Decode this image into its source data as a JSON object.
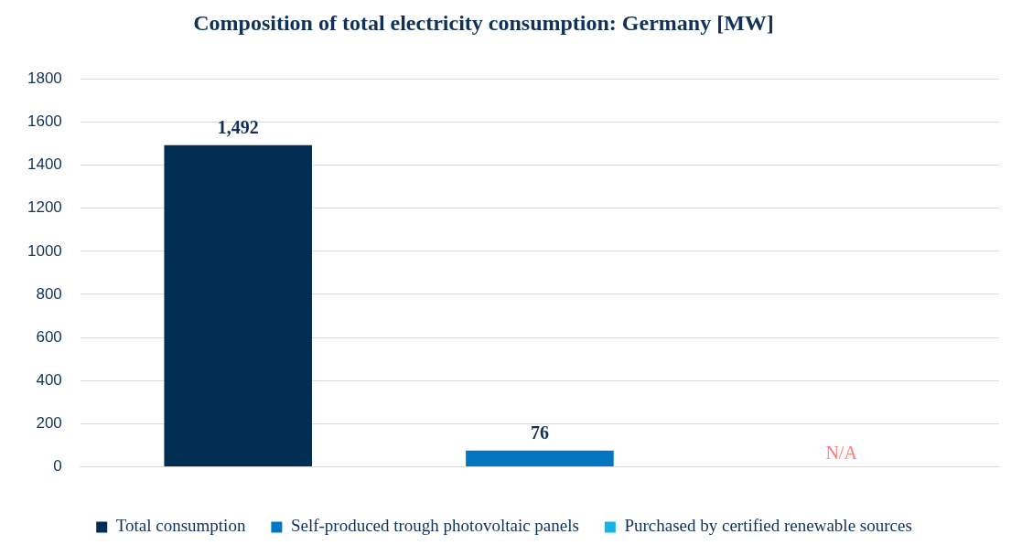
{
  "chart_data": {
    "type": "bar",
    "title": "Composition of total electricity consumption: Germany [MW]",
    "categories": [
      null
    ],
    "series": [
      {
        "name": "Total consumption",
        "color": "#002d52",
        "values": [
          1492
        ],
        "value_labels": [
          "1,492"
        ]
      },
      {
        "name": "Self-produced trough photovoltaic panels",
        "color": "#0077c0",
        "values": [
          76
        ],
        "value_labels": [
          "76"
        ]
      },
      {
        "name": "Purchased by certified renewable sources",
        "color": "#16b4e6",
        "values": [
          null
        ],
        "value_labels": [
          "N/A"
        ]
      }
    ],
    "ylim": [
      0,
      1800
    ],
    "yticks": [
      0,
      200,
      400,
      600,
      800,
      1000,
      1200,
      1400,
      1600,
      1800
    ],
    "grid": "y",
    "legend": "bottom"
  }
}
